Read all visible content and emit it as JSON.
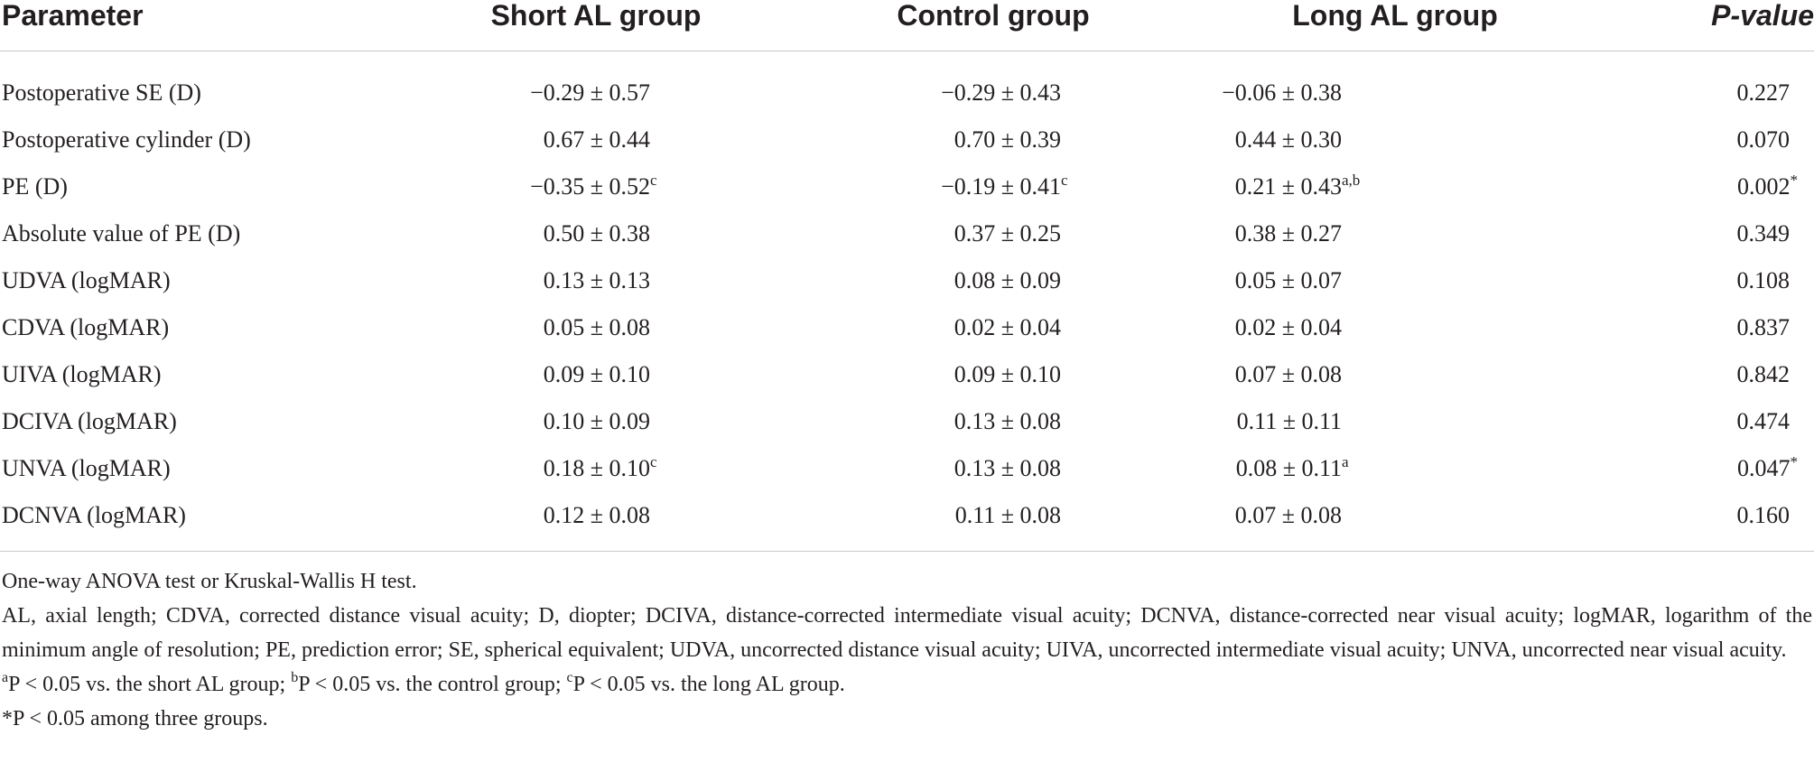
{
  "table": {
    "headers": {
      "parameter": "Parameter",
      "short": "Short AL group",
      "control": "Control group",
      "long": "Long AL group",
      "pvalue": "P-value"
    },
    "rows": [
      {
        "parameter": "Postoperative SE (D)",
        "short": "−0.29 ± 0.57",
        "short_sup": "",
        "control": "−0.29 ± 0.43",
        "control_sup": "",
        "long": "−0.06 ± 0.38",
        "long_sup": "",
        "pvalue": "0.227",
        "pvalue_sup": ""
      },
      {
        "parameter": "Postoperative cylinder (D)",
        "short": "0.67 ± 0.44",
        "short_sup": "",
        "control": "0.70 ± 0.39",
        "control_sup": "",
        "long": "0.44 ± 0.30",
        "long_sup": "",
        "pvalue": "0.070",
        "pvalue_sup": ""
      },
      {
        "parameter": "PE (D)",
        "short": "−0.35 ± 0.52",
        "short_sup": "c",
        "control": "−0.19 ± 0.41",
        "control_sup": "c",
        "long": "0.21 ± 0.43",
        "long_sup": "a,b",
        "pvalue": "0.002",
        "pvalue_sup": "*"
      },
      {
        "parameter": "Absolute value of PE (D)",
        "short": "0.50 ± 0.38",
        "short_sup": "",
        "control": "0.37 ± 0.25",
        "control_sup": "",
        "long": "0.38 ± 0.27",
        "long_sup": "",
        "pvalue": "0.349",
        "pvalue_sup": ""
      },
      {
        "parameter": "UDVA (logMAR)",
        "short": "0.13 ± 0.13",
        "short_sup": "",
        "control": "0.08 ± 0.09",
        "control_sup": "",
        "long": "0.05 ± 0.07",
        "long_sup": "",
        "pvalue": "0.108",
        "pvalue_sup": ""
      },
      {
        "parameter": "CDVA (logMAR)",
        "short": "0.05 ± 0.08",
        "short_sup": "",
        "control": "0.02 ± 0.04",
        "control_sup": "",
        "long": "0.02 ± 0.04",
        "long_sup": "",
        "pvalue": "0.837",
        "pvalue_sup": ""
      },
      {
        "parameter": "UIVA (logMAR)",
        "short": "0.09 ± 0.10",
        "short_sup": "",
        "control": "0.09 ± 0.10",
        "control_sup": "",
        "long": "0.07 ± 0.08",
        "long_sup": "",
        "pvalue": "0.842",
        "pvalue_sup": ""
      },
      {
        "parameter": "DCIVA (logMAR)",
        "short": "0.10 ± 0.09",
        "short_sup": "",
        "control": "0.13 ± 0.08",
        "control_sup": "",
        "long": "0.11 ± 0.11",
        "long_sup": "",
        "pvalue": "0.474",
        "pvalue_sup": ""
      },
      {
        "parameter": "UNVA (logMAR)",
        "short": "0.18 ± 0.10",
        "short_sup": "c",
        "control": "0.13 ± 0.08",
        "control_sup": "",
        "long": "0.08 ± 0.11",
        "long_sup": "a",
        "pvalue": "0.047",
        "pvalue_sup": "*"
      },
      {
        "parameter": "DCNVA (logMAR)",
        "short": "0.12 ± 0.08",
        "short_sup": "",
        "control": "0.11 ± 0.08",
        "control_sup": "",
        "long": "0.07 ± 0.08",
        "long_sup": "",
        "pvalue": "0.160",
        "pvalue_sup": ""
      }
    ]
  },
  "footnotes": {
    "test": "One-way ANOVA test or Kruskal-Wallis H test.",
    "abbreviations": "AL, axial length; CDVA, corrected distance visual acuity; D, diopter; DCIVA, distance-corrected intermediate visual acuity; DCNVA, distance-corrected near visual acuity; logMAR, logarithm of the minimum angle of resolution; PE, prediction error; SE, spherical equivalent; UDVA, uncorrected distance visual acuity; UIVA, uncorrected intermediate visual acuity; UNVA, uncorrected near visual acuity.",
    "sig_a_mark": "a",
    "sig_a_text": "P < 0.05 vs. the short AL group; ",
    "sig_b_mark": "b",
    "sig_b_text": "P < 0.05 vs. the control group; ",
    "sig_c_mark": "c",
    "sig_c_text": "P < 0.05 vs. the long AL group.",
    "star_mark": "*",
    "star_text": "P < 0.05 among three groups."
  }
}
